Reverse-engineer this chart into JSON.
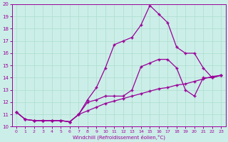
{
  "xlabel": "Windchill (Refroidissement éolien,°C)",
  "bg_color": "#cceee8",
  "line_color": "#990099",
  "xlim": [
    -0.5,
    23.5
  ],
  "ylim": [
    10,
    20
  ],
  "xticks": [
    0,
    1,
    2,
    3,
    4,
    5,
    6,
    7,
    8,
    9,
    10,
    11,
    12,
    13,
    14,
    15,
    16,
    17,
    18,
    19,
    20,
    21,
    22,
    23
  ],
  "yticks": [
    10,
    11,
    12,
    13,
    14,
    15,
    16,
    17,
    18,
    19,
    20
  ],
  "line1_x": [
    0,
    1,
    2,
    3,
    4,
    5,
    6,
    7,
    8,
    9,
    10,
    11,
    12,
    13,
    14,
    15,
    16,
    17,
    18,
    19,
    20,
    21,
    22,
    23
  ],
  "line1_y": [
    11.2,
    10.6,
    10.5,
    10.5,
    10.5,
    10.5,
    10.4,
    11.0,
    12.2,
    13.2,
    14.8,
    16.7,
    17.0,
    17.3,
    18.3,
    19.9,
    19.2,
    18.5,
    16.5,
    16.0,
    16.0,
    14.8,
    14.0,
    14.2
  ],
  "line2_x": [
    0,
    1,
    2,
    3,
    4,
    5,
    6,
    7,
    8,
    9,
    10,
    11,
    12,
    13,
    14,
    15,
    16,
    17,
    18,
    19,
    20,
    21,
    22,
    23
  ],
  "line2_y": [
    11.2,
    10.6,
    10.5,
    10.5,
    10.5,
    10.5,
    10.4,
    11.0,
    12.0,
    12.2,
    12.5,
    12.5,
    12.5,
    13.0,
    14.9,
    15.2,
    15.5,
    15.5,
    14.8,
    13.0,
    12.5,
    14.0,
    14.0,
    14.2
  ],
  "line3_x": [
    0,
    1,
    2,
    3,
    4,
    5,
    6,
    7,
    8,
    9,
    10,
    11,
    12,
    13,
    14,
    15,
    16,
    17,
    18,
    19,
    20,
    21,
    22,
    23
  ],
  "line3_y": [
    11.2,
    10.6,
    10.5,
    10.5,
    10.5,
    10.5,
    10.4,
    11.0,
    11.3,
    11.6,
    11.9,
    12.1,
    12.3,
    12.5,
    12.7,
    12.9,
    13.1,
    13.2,
    13.4,
    13.5,
    13.7,
    13.9,
    14.1,
    14.2
  ]
}
